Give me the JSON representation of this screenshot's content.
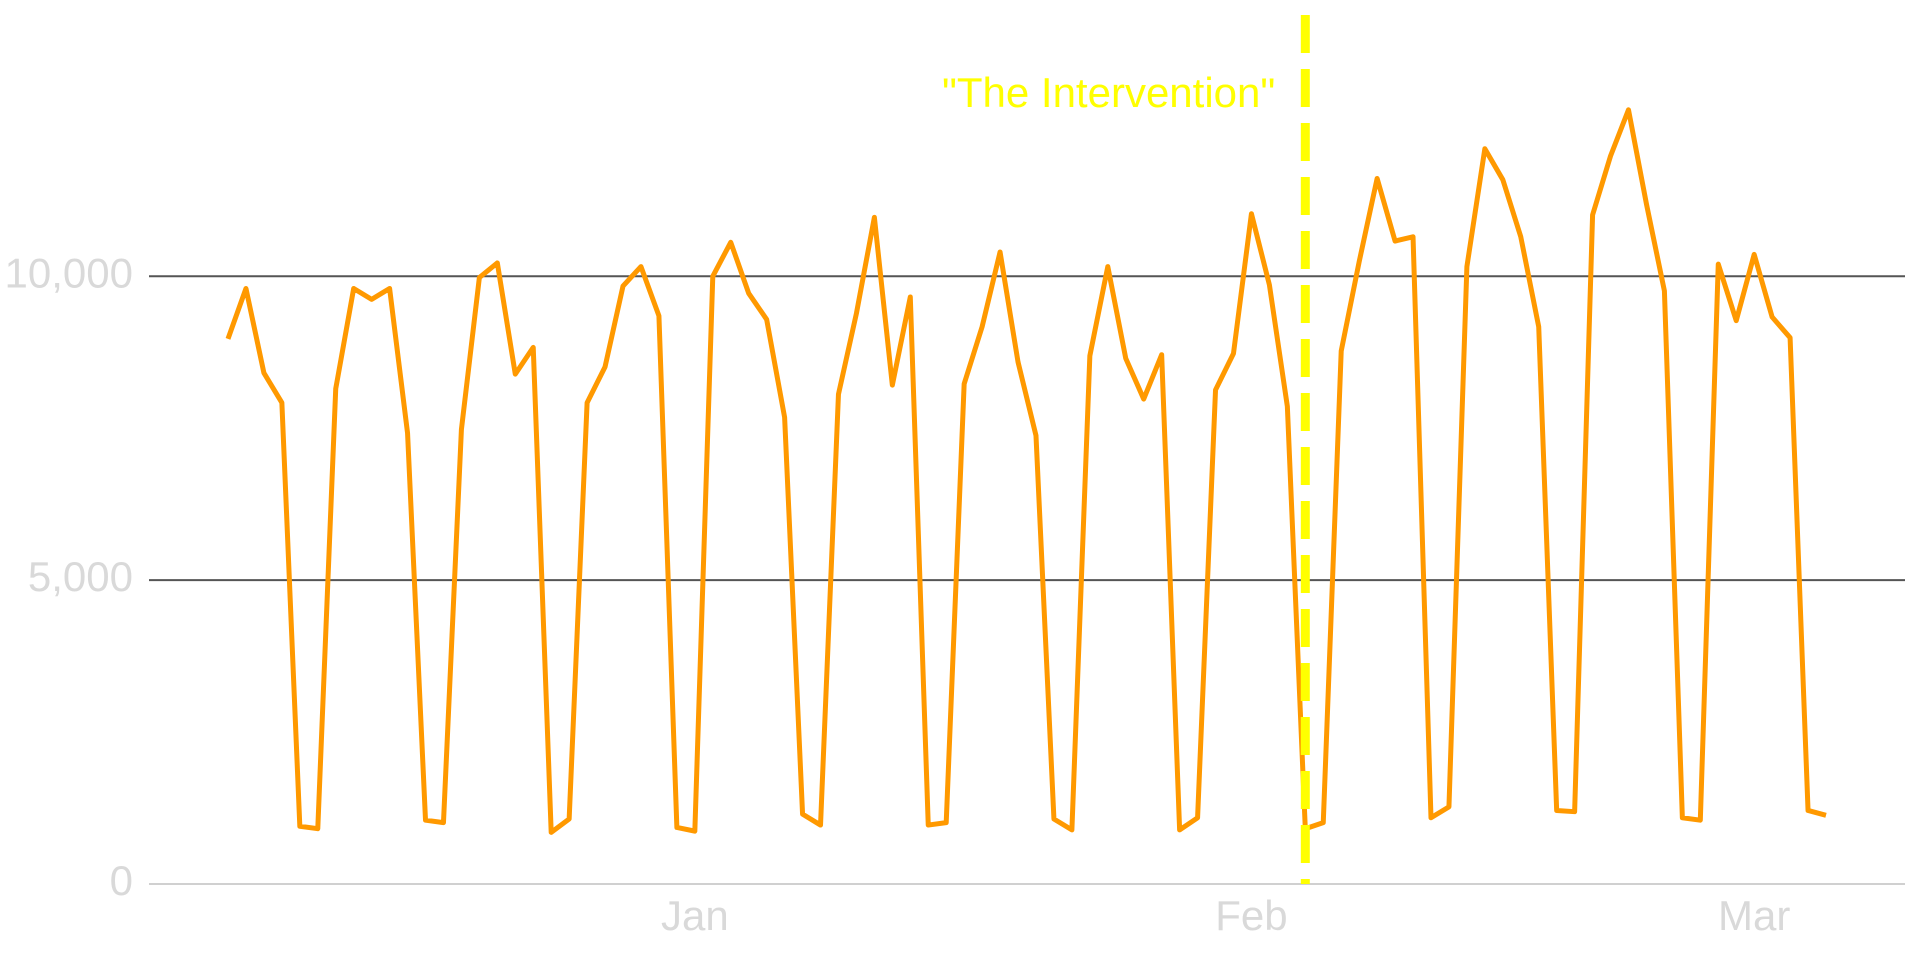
{
  "chart_data": {
    "type": "line",
    "color": "#ff9900",
    "grid": true,
    "x": [
      -26,
      -25,
      -24,
      -23,
      -22,
      -21,
      -20,
      -19,
      -18,
      -17,
      -16,
      -15,
      -14,
      -13,
      -12,
      -11,
      -10,
      -9,
      -8,
      -7,
      -6,
      -5,
      -4,
      -3,
      -2,
      -1,
      0,
      1,
      2,
      3,
      4,
      5,
      6,
      7,
      8,
      9,
      10,
      11,
      12,
      13,
      14,
      15,
      16,
      17,
      18,
      19,
      20,
      21,
      22,
      23,
      24,
      25,
      26,
      27,
      28,
      29,
      30,
      31,
      32,
      33,
      34,
      35,
      36,
      37,
      38,
      39,
      40,
      41,
      42,
      43,
      44,
      45,
      46,
      47,
      48,
      49,
      50,
      51,
      52,
      53,
      54,
      55,
      56,
      57,
      58,
      59,
      60,
      61,
      62,
      63
    ],
    "values": [
      8970,
      9800,
      8410,
      7920,
      950,
      910,
      8150,
      9800,
      9620,
      9800,
      7420,
      1050,
      1010,
      7480,
      9980,
      10220,
      8390,
      8830,
      850,
      1070,
      7920,
      8510,
      9840,
      10160,
      9350,
      930,
      870,
      10000,
      10560,
      9720,
      9290,
      7680,
      1150,
      970,
      8060,
      9390,
      10970,
      8210,
      9660,
      970,
      1010,
      8230,
      9170,
      10400,
      8590,
      7380,
      1070,
      890,
      8690,
      10160,
      8650,
      7980,
      8710,
      890,
      1090,
      8130,
      8730,
      11030,
      9860,
      7860,
      910,
      1010,
      8770,
      10240,
      11610,
      10580,
      10650,
      1090,
      1270,
      10160,
      12100,
      11590,
      10650,
      9170,
      1210,
      1190,
      11010,
      11980,
      12740,
      11190,
      9760,
      1090,
      1050,
      10200,
      9270,
      10360,
      9330,
      8990,
      1210,
      1130
    ],
    "xlim": [
      -30.4,
      67.4
    ],
    "xticks": [
      {
        "value": 0,
        "label": "Jan"
      },
      {
        "value": 31,
        "label": "Feb"
      },
      {
        "value": 59,
        "label": "Mar"
      }
    ],
    "ylim": [
      0,
      14300
    ],
    "yticks": [
      0,
      {
        "value": 5000,
        "label": "5,000"
      },
      {
        "value": 10000,
        "label": "10,000"
      }
    ],
    "annotations": [
      {
        "x": 34,
        "text": "\"The Intervention\"",
        "color": "#ffff00"
      }
    ]
  }
}
